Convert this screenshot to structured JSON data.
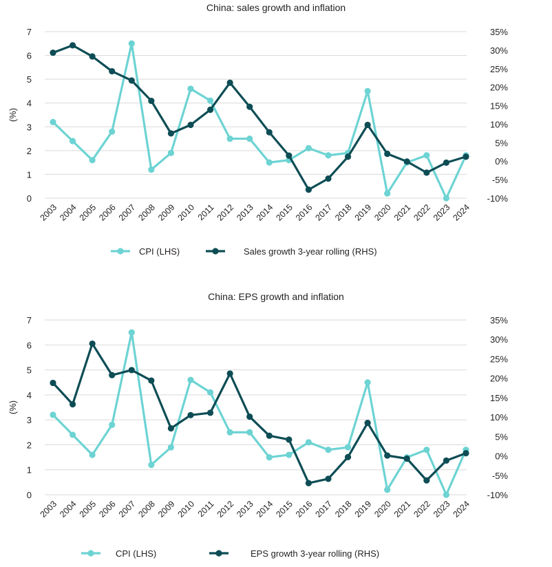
{
  "chart_data": [
    {
      "type": "line",
      "title": "China: sales growth and inflation",
      "ylabel_left": "(%)",
      "ylim_left": [
        0,
        7
      ],
      "left_ticks": [
        "0",
        "1",
        "2",
        "3",
        "4",
        "5",
        "6",
        "7"
      ],
      "ylim_right": [
        -10,
        35
      ],
      "right_ticks": [
        "-10%",
        "-5%",
        "0%",
        "5%",
        "10%",
        "15%",
        "20%",
        "25%",
        "30%",
        "35%"
      ],
      "grid": true,
      "legend_position": "bottom",
      "categories": [
        "2003",
        "2004",
        "2005",
        "2006",
        "2007",
        "2008",
        "2009",
        "2010",
        "2011",
        "2012",
        "2013",
        "2014",
        "2015",
        "2016",
        "2017",
        "2018",
        "2019",
        "2020",
        "2021",
        "2022",
        "2023",
        "2024"
      ],
      "series": [
        {
          "name": "CPI (LHS)",
          "axis": "left",
          "color": "#6dd3d3",
          "values": [
            3.2,
            2.4,
            1.6,
            2.8,
            6.5,
            1.2,
            1.9,
            4.6,
            4.1,
            2.5,
            2.5,
            1.5,
            1.6,
            2.1,
            1.8,
            1.9,
            4.5,
            0.2,
            1.5,
            1.8,
            0.0,
            1.8
          ]
        },
        {
          "name": "Sales growth 3-year rolling (RHS)",
          "axis": "right",
          "color": "#0e4d55",
          "values": [
            29.3,
            31.3,
            28.3,
            24.3,
            21.8,
            16.3,
            7.5,
            9.8,
            13.9,
            21.2,
            14.7,
            7.8,
            1.5,
            -7.7,
            -4.7,
            1.2,
            9.8,
            2.0,
            -0.1,
            -3.1,
            -0.4,
            1.2
          ]
        }
      ]
    },
    {
      "type": "line",
      "title": "China: EPS growth and inflation",
      "ylabel_left": "(%)",
      "ylim_left": [
        0,
        7
      ],
      "left_ticks": [
        "0",
        "1",
        "2",
        "3",
        "4",
        "5",
        "6",
        "7"
      ],
      "ylim_right": [
        -10,
        35
      ],
      "right_ticks": [
        "-10%",
        "-5%",
        "0%",
        "5%",
        "10%",
        "15%",
        "20%",
        "25%",
        "30%",
        "35%"
      ],
      "grid": true,
      "legend_position": "bottom",
      "categories": [
        "2003",
        "2004",
        "2005",
        "2006",
        "2007",
        "2008",
        "2009",
        "2010",
        "2011",
        "2012",
        "2013",
        "2014",
        "2015",
        "2016",
        "2017",
        "2018",
        "2019",
        "2020",
        "2021",
        "2022",
        "2023",
        "2024"
      ],
      "series": [
        {
          "name": "CPI (LHS)",
          "axis": "left",
          "color": "#6dd3d3",
          "values": [
            3.2,
            2.4,
            1.6,
            2.8,
            6.5,
            1.2,
            1.9,
            4.6,
            4.1,
            2.5,
            2.5,
            1.5,
            1.6,
            2.1,
            1.8,
            1.9,
            4.5,
            0.2,
            1.5,
            1.8,
            0.0,
            1.8
          ]
        },
        {
          "name": "EPS growth 3-year rolling (RHS)",
          "axis": "right",
          "color": "#0e4d55",
          "values": [
            18.8,
            13.3,
            28.9,
            20.8,
            22.1,
            19.4,
            7.1,
            10.5,
            11.1,
            21.2,
            10.1,
            5.2,
            4.2,
            -7.0,
            -5.9,
            -0.3,
            8.5,
            0.1,
            -0.7,
            -6.3,
            -1.2,
            0.7
          ]
        }
      ]
    }
  ]
}
